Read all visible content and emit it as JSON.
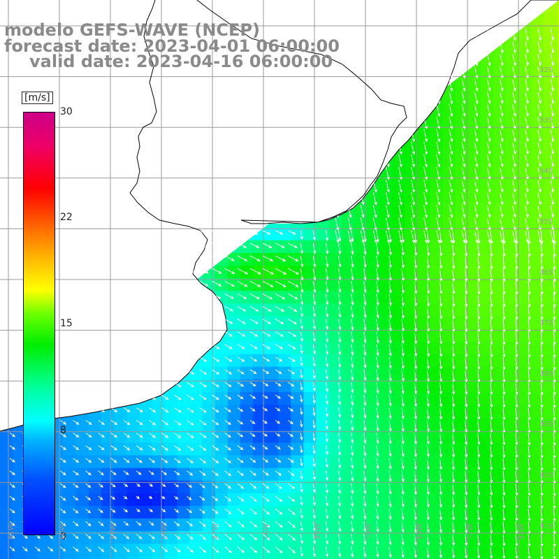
{
  "header": {
    "title_line1": "modelo GEFS-WAVE (NCEP)",
    "title_line2": "forecast date: 2023-04-01 06:00:00",
    "title_line3": "valid date: 2023-04-16 06:00:00"
  },
  "colorbar": {
    "unit": "[m/s]",
    "ticks": [
      "30",
      "22",
      "15",
      "8",
      "0"
    ],
    "tick_values": [
      30,
      22,
      15,
      8,
      0
    ],
    "colors": [
      "#0000ff",
      "#00ffff",
      "#00ee00",
      "#ffff00",
      "#ff0000",
      "#cc0088"
    ]
  },
  "map": {
    "lat_labels": [
      "32S",
      "33S",
      "34S",
      "35S",
      "36S",
      "37S",
      "38S",
      "39S",
      "40S",
      "41S"
    ],
    "lon_labels": [
      "61W",
      "60W",
      "59W",
      "58W",
      "57W",
      "56W",
      "55W",
      "54W",
      "53W",
      "52W",
      "51W"
    ],
    "colors": {
      "land": "#ffffff",
      "grid": "#999999",
      "coastline": "#000000",
      "vector": "#ffffff"
    }
  }
}
